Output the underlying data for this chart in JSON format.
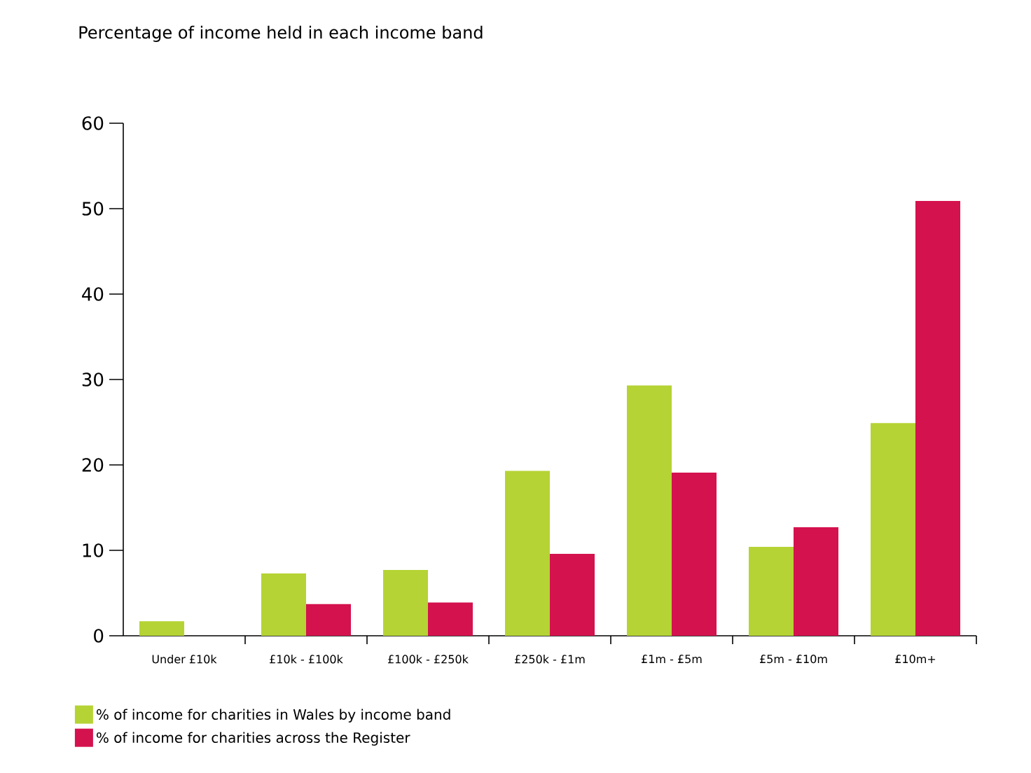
{
  "chart_data": {
    "type": "bar",
    "title": "Percentage of income held in each income band",
    "categories": [
      "Under £10k",
      "£10k - £100k",
      "£100k - £250k",
      "£250k - £1m",
      "£1m - £5m",
      "£5m - £10m",
      "£10m+"
    ],
    "series": [
      {
        "name": "% of income for charities in Wales by income band",
        "color": "#b5d334",
        "values": [
          1.7,
          7.3,
          7.7,
          19.3,
          29.3,
          10.4,
          24.9
        ]
      },
      {
        "name": "% of income for charities across the Register",
        "color": "#d4124e",
        "values": [
          null,
          3.7,
          3.9,
          9.6,
          19.1,
          12.7,
          50.9
        ]
      }
    ],
    "ylim": [
      0,
      60
    ],
    "yticks": [
      0,
      10,
      20,
      30,
      40,
      50,
      60
    ],
    "grid": false,
    "legend": "bottom left"
  }
}
